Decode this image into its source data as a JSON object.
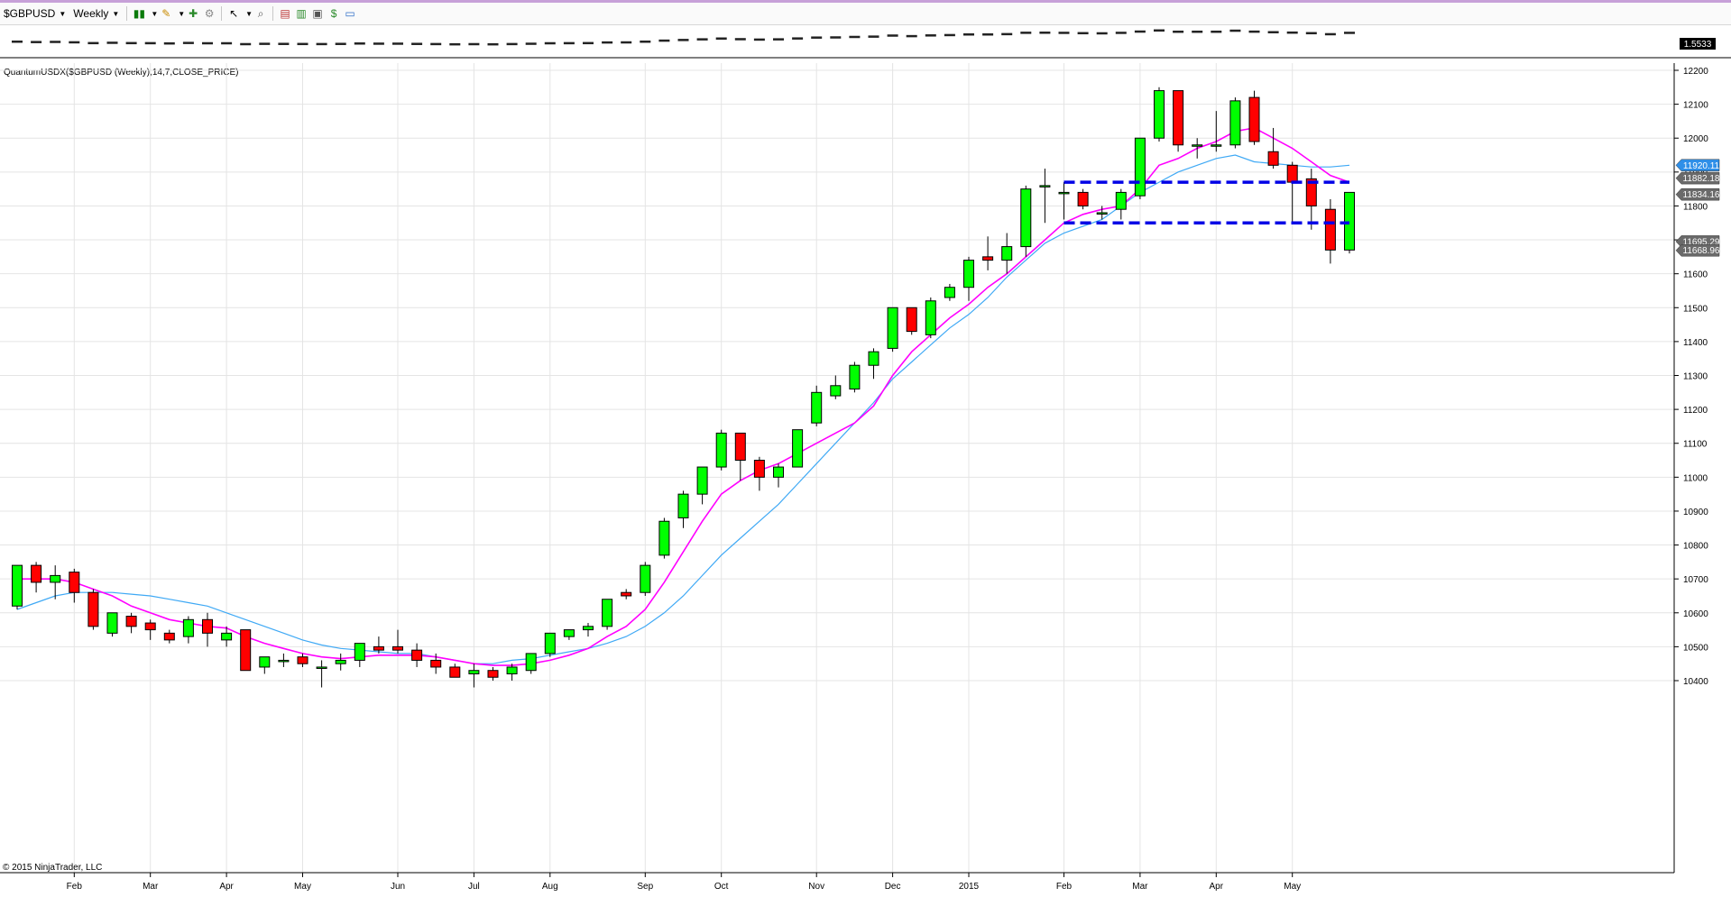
{
  "toolbar": {
    "instrument_label": "$GBPUSD",
    "interval_label": "Weekly",
    "icons": [
      "bar-type-icon",
      "drawing-pencil-icon",
      "add-indicator-icon",
      "properties-icon",
      "cursor-icon",
      "zoom-icon",
      "data-box-icon",
      "chart-trader-icon",
      "snapshot-icon",
      "strategy-icon",
      "window-icon"
    ]
  },
  "overview_price_label": "1.5533",
  "indicator_label": "QuantumUSDX($GBPUSD (Weekly),14,7,CLOSE_PRICE)",
  "copyright": "© 2015 NinjaTrader, LLC",
  "colors": {
    "up_candle": "#00ff00",
    "down_candle": "#ff0000",
    "fast_ma": "#ff00ff",
    "slow_ma": "#3fa9f5",
    "zone_lines": "#0000e6",
    "price_tag_blue": "#2f8fe8",
    "price_tag_gray": "#6a6a6a"
  },
  "chart_data": {
    "type": "candlestick",
    "ylim": [
      10350,
      12250
    ],
    "y_ticks": [
      10400,
      10500,
      10600,
      10700,
      10800,
      10900,
      11000,
      11100,
      11200,
      11300,
      11400,
      11500,
      11600,
      11700,
      11800,
      11900,
      12000,
      12100,
      12200
    ],
    "x_labels": [
      "Feb",
      "Mar",
      "Apr",
      "May",
      "Jun",
      "Jul",
      "Aug",
      "Sep",
      "Oct",
      "Nov",
      "Dec",
      "2015",
      "Feb",
      "Mar",
      "Apr",
      "May"
    ],
    "x_label_weeks": [
      3,
      7,
      11,
      15,
      20,
      24,
      28,
      33,
      37,
      42,
      46,
      50,
      55,
      59,
      63,
      67
    ],
    "candles": [
      {
        "o": 10620,
        "h": 10740,
        "l": 10610,
        "c": 10740
      },
      {
        "o": 10740,
        "h": 10750,
        "l": 10660,
        "c": 10690
      },
      {
        "o": 10690,
        "h": 10740,
        "l": 10640,
        "c": 10710
      },
      {
        "o": 10720,
        "h": 10730,
        "l": 10630,
        "c": 10660
      },
      {
        "o": 10660,
        "h": 10670,
        "l": 10550,
        "c": 10560
      },
      {
        "o": 10540,
        "h": 10600,
        "l": 10530,
        "c": 10600
      },
      {
        "o": 10590,
        "h": 10600,
        "l": 10540,
        "c": 10560
      },
      {
        "o": 10570,
        "h": 10580,
        "l": 10520,
        "c": 10550
      },
      {
        "o": 10540,
        "h": 10550,
        "l": 10510,
        "c": 10520
      },
      {
        "o": 10530,
        "h": 10590,
        "l": 10510,
        "c": 10580
      },
      {
        "o": 10580,
        "h": 10600,
        "l": 10500,
        "c": 10540
      },
      {
        "o": 10520,
        "h": 10560,
        "l": 10500,
        "c": 10540
      },
      {
        "o": 10550,
        "h": 10550,
        "l": 10430,
        "c": 10430
      },
      {
        "o": 10440,
        "h": 10470,
        "l": 10420,
        "c": 10470
      },
      {
        "o": 10460,
        "h": 10480,
        "l": 10440,
        "c": 10460
      },
      {
        "o": 10470,
        "h": 10480,
        "l": 10440,
        "c": 10450
      },
      {
        "o": 10440,
        "h": 10460,
        "l": 10380,
        "c": 10440
      },
      {
        "o": 10450,
        "h": 10480,
        "l": 10430,
        "c": 10460
      },
      {
        "o": 10460,
        "h": 10510,
        "l": 10440,
        "c": 10510
      },
      {
        "o": 10500,
        "h": 10530,
        "l": 10480,
        "c": 10490
      },
      {
        "o": 10500,
        "h": 10550,
        "l": 10480,
        "c": 10490
      },
      {
        "o": 10490,
        "h": 10510,
        "l": 10440,
        "c": 10460
      },
      {
        "o": 10460,
        "h": 10480,
        "l": 10420,
        "c": 10440
      },
      {
        "o": 10440,
        "h": 10450,
        "l": 10410,
        "c": 10410
      },
      {
        "o": 10420,
        "h": 10450,
        "l": 10380,
        "c": 10430
      },
      {
        "o": 10430,
        "h": 10440,
        "l": 10400,
        "c": 10410
      },
      {
        "o": 10420,
        "h": 10450,
        "l": 10400,
        "c": 10440
      },
      {
        "o": 10430,
        "h": 10480,
        "l": 10420,
        "c": 10480
      },
      {
        "o": 10480,
        "h": 10540,
        "l": 10470,
        "c": 10540
      },
      {
        "o": 10530,
        "h": 10550,
        "l": 10520,
        "c": 10550
      },
      {
        "o": 10550,
        "h": 10570,
        "l": 10530,
        "c": 10560
      },
      {
        "o": 10560,
        "h": 10640,
        "l": 10550,
        "c": 10640
      },
      {
        "o": 10660,
        "h": 10670,
        "l": 10640,
        "c": 10650
      },
      {
        "o": 10660,
        "h": 10750,
        "l": 10650,
        "c": 10740
      },
      {
        "o": 10770,
        "h": 10880,
        "l": 10760,
        "c": 10870
      },
      {
        "o": 10880,
        "h": 10960,
        "l": 10850,
        "c": 10950
      },
      {
        "o": 10950,
        "h": 11030,
        "l": 10920,
        "c": 11030
      },
      {
        "o": 11030,
        "h": 11140,
        "l": 11020,
        "c": 11130
      },
      {
        "o": 11130,
        "h": 11130,
        "l": 10990,
        "c": 11050
      },
      {
        "o": 11050,
        "h": 11060,
        "l": 10960,
        "c": 11000
      },
      {
        "o": 11000,
        "h": 11040,
        "l": 10970,
        "c": 11030
      },
      {
        "o": 11030,
        "h": 11140,
        "l": 11030,
        "c": 11140
      },
      {
        "o": 11160,
        "h": 11270,
        "l": 11150,
        "c": 11250
      },
      {
        "o": 11240,
        "h": 11300,
        "l": 11230,
        "c": 11270
      },
      {
        "o": 11260,
        "h": 11340,
        "l": 11250,
        "c": 11330
      },
      {
        "o": 11330,
        "h": 11380,
        "l": 11290,
        "c": 11370
      },
      {
        "o": 11380,
        "h": 11500,
        "l": 11370,
        "c": 11500
      },
      {
        "o": 11500,
        "h": 11500,
        "l": 11420,
        "c": 11430
      },
      {
        "o": 11420,
        "h": 11530,
        "l": 11410,
        "c": 11520
      },
      {
        "o": 11530,
        "h": 11570,
        "l": 11520,
        "c": 11560
      },
      {
        "o": 11560,
        "h": 11650,
        "l": 11520,
        "c": 11640
      },
      {
        "o": 11650,
        "h": 11710,
        "l": 11610,
        "c": 11640
      },
      {
        "o": 11640,
        "h": 11720,
        "l": 11600,
        "c": 11680
      },
      {
        "o": 11680,
        "h": 11860,
        "l": 11650,
        "c": 11850
      },
      {
        "o": 11860,
        "h": 11910,
        "l": 11750,
        "c": 11860
      },
      {
        "o": 11840,
        "h": 11870,
        "l": 11760,
        "c": 11840
      },
      {
        "o": 11840,
        "h": 11850,
        "l": 11790,
        "c": 11800
      },
      {
        "o": 11780,
        "h": 11800,
        "l": 11760,
        "c": 11780
      },
      {
        "o": 11790,
        "h": 11850,
        "l": 11760,
        "c": 11840
      },
      {
        "o": 11830,
        "h": 12000,
        "l": 11820,
        "c": 12000
      },
      {
        "o": 12000,
        "h": 12150,
        "l": 11990,
        "c": 12140
      },
      {
        "o": 12140,
        "h": 12140,
        "l": 11960,
        "c": 11980
      },
      {
        "o": 11980,
        "h": 12000,
        "l": 11940,
        "c": 11980
      },
      {
        "o": 11980,
        "h": 12080,
        "l": 11960,
        "c": 11980
      },
      {
        "o": 11980,
        "h": 12120,
        "l": 11970,
        "c": 12110
      },
      {
        "o": 12120,
        "h": 12140,
        "l": 11980,
        "c": 11990
      },
      {
        "o": 11960,
        "h": 12030,
        "l": 11910,
        "c": 11920
      },
      {
        "o": 11920,
        "h": 11930,
        "l": 11750,
        "c": 11870
      },
      {
        "o": 11880,
        "h": 11910,
        "l": 11730,
        "c": 11800
      },
      {
        "o": 11790,
        "h": 11820,
        "l": 11630,
        "c": 11670
      },
      {
        "o": 11670,
        "h": 11840,
        "l": 11660,
        "c": 11840
      }
    ],
    "fast_ma": [
      10700,
      10700,
      10700,
      10690,
      10670,
      10650,
      10620,
      10600,
      10580,
      10570,
      10560,
      10555,
      10530,
      10510,
      10495,
      10480,
      10470,
      10465,
      10470,
      10475,
      10475,
      10475,
      10470,
      10460,
      10450,
      10445,
      10445,
      10450,
      10460,
      10475,
      10495,
      10530,
      10560,
      10610,
      10690,
      10780,
      10870,
      10950,
      10990,
      11020,
      11040,
      11070,
      11100,
      11130,
      11160,
      11210,
      11300,
      11370,
      11420,
      11470,
      11510,
      11560,
      11600,
      11650,
      11700,
      11750,
      11775,
      11790,
      11800,
      11850,
      11920,
      11940,
      11970,
      11990,
      12020,
      12030,
      12000,
      11970,
      11930,
      11890,
      11870
    ],
    "slow_ma": [
      10610,
      10630,
      10650,
      10660,
      10660,
      10660,
      10655,
      10650,
      10640,
      10630,
      10620,
      10600,
      10580,
      10560,
      10540,
      10520,
      10505,
      10495,
      10490,
      10485,
      10480,
      10480,
      10470,
      10460,
      10450,
      10450,
      10460,
      10465,
      10475,
      10485,
      10495,
      10510,
      10530,
      10560,
      10600,
      10650,
      10710,
      10770,
      10820,
      10870,
      10920,
      10980,
      11040,
      11100,
      11160,
      11220,
      11290,
      11340,
      11390,
      11440,
      11480,
      11530,
      11590,
      11640,
      11690,
      11720,
      11740,
      11760,
      11800,
      11840,
      11870,
      11900,
      11920,
      11940,
      11950,
      11930,
      11925,
      11920,
      11915,
      11915,
      11920
    ],
    "zone_lines": [
      {
        "y": 11870,
        "from_week": 55,
        "to_week": 70
      },
      {
        "y": 11750,
        "from_week": 55,
        "to_week": 70
      }
    ],
    "price_tags": [
      {
        "label": "11920.11",
        "y": 11920,
        "color": "blue"
      },
      {
        "label": "11882.18",
        "y": 11882,
        "color": "gray"
      },
      {
        "label": "11834.16",
        "y": 11834,
        "color": "gray"
      },
      {
        "label": "11695.29",
        "y": 11695,
        "color": "gray"
      },
      {
        "label": "11668.96",
        "y": 11669,
        "color": "gray"
      }
    ]
  }
}
